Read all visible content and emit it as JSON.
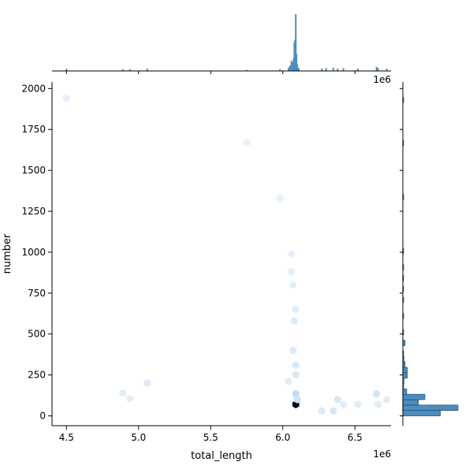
{
  "chart_data": {
    "type": "scatter",
    "plot_kind": "hexbin joint plot with marginal histograms",
    "xlabel": "total_length",
    "ylabel": "number",
    "x_offset_label": "1e6",
    "top_marginal_offset_label": "1e6",
    "xlim": [
      4400000.0,
      6750000.0
    ],
    "ylim": [
      -60,
      2040
    ],
    "x_ticks": [
      4500000.0,
      5000000.0,
      5500000.0,
      6000000.0,
      6500000.0
    ],
    "x_tick_labels": [
      "4.5",
      "5.0",
      "5.5",
      "6.0",
      "6.5"
    ],
    "y_ticks": [
      0,
      250,
      500,
      750,
      1000,
      1250,
      1500,
      1750,
      2000
    ],
    "y_tick_labels": [
      "0",
      "250",
      "500",
      "750",
      "1000",
      "1250",
      "1500",
      "1750",
      "2000"
    ],
    "grid": false,
    "colors": {
      "hex_dark": "#0a0a0a",
      "hex_mid": "#8fc2ec",
      "hex_light": "#d6e9f8",
      "hex_faint": "#eef5fc",
      "hist_fill": "#4c8dc0",
      "hist_edge": "#1a3a55"
    },
    "hexbins": [
      {
        "x": 6090000.0,
        "y": 70,
        "intensity": 1.0
      },
      {
        "x": 6090000.0,
        "y": 135,
        "intensity": 0.35
      },
      {
        "x": 6100000.0,
        "y": 100,
        "intensity": 0.2
      },
      {
        "x": 6090000.0,
        "y": 310,
        "intensity": 0.12
      },
      {
        "x": 6090000.0,
        "y": 250,
        "intensity": 0.1
      },
      {
        "x": 6070000.0,
        "y": 400,
        "intensity": 0.08
      },
      {
        "x": 6080000.0,
        "y": 580,
        "intensity": 0.08
      },
      {
        "x": 6090000.0,
        "y": 650,
        "intensity": 0.06
      },
      {
        "x": 6070000.0,
        "y": 800,
        "intensity": 0.06
      },
      {
        "x": 6060000.0,
        "y": 880,
        "intensity": 0.05
      },
      {
        "x": 6060000.0,
        "y": 990,
        "intensity": 0.04
      },
      {
        "x": 6040000.0,
        "y": 210,
        "intensity": 0.06
      },
      {
        "x": 5980000.0,
        "y": 1330,
        "intensity": 0.04
      },
      {
        "x": 5750000.0,
        "y": 1670,
        "intensity": 0.03
      },
      {
        "x": 4500000.0,
        "y": 1940,
        "intensity": 0.04
      },
      {
        "x": 5060000.0,
        "y": 200,
        "intensity": 0.08
      },
      {
        "x": 4890000.0,
        "y": 140,
        "intensity": 0.06
      },
      {
        "x": 4940000.0,
        "y": 105,
        "intensity": 0.05
      },
      {
        "x": 6270000.0,
        "y": 30,
        "intensity": 0.08
      },
      {
        "x": 6350000.0,
        "y": 30,
        "intensity": 0.12
      },
      {
        "x": 6380000.0,
        "y": 100,
        "intensity": 0.1
      },
      {
        "x": 6420000.0,
        "y": 70,
        "intensity": 0.06
      },
      {
        "x": 6520000.0,
        "y": 70,
        "intensity": 0.06
      },
      {
        "x": 6650000.0,
        "y": 135,
        "intensity": 0.18
      },
      {
        "x": 6660000.0,
        "y": 70,
        "intensity": 0.06
      },
      {
        "x": 6720000.0,
        "y": 100,
        "intensity": 0.06
      }
    ],
    "top_histogram": [
      {
        "x": 4500000.0,
        "h": 0.04
      },
      {
        "x": 4890000.0,
        "h": 0.03
      },
      {
        "x": 4940000.0,
        "h": 0.03
      },
      {
        "x": 5060000.0,
        "h": 0.04
      },
      {
        "x": 5750000.0,
        "h": 0.02
      },
      {
        "x": 5980000.0,
        "h": 0.03
      },
      {
        "x": 6040000.0,
        "h": 0.06
      },
      {
        "x": 6050000.0,
        "h": 0.1
      },
      {
        "x": 6060000.0,
        "h": 0.18
      },
      {
        "x": 6070000.0,
        "h": 0.15
      },
      {
        "x": 6075000.0,
        "h": 0.22
      },
      {
        "x": 6080000.0,
        "h": 0.5
      },
      {
        "x": 6085000.0,
        "h": 0.55
      },
      {
        "x": 6090000.0,
        "h": 1.0
      },
      {
        "x": 6095000.0,
        "h": 0.3
      },
      {
        "x": 6100000.0,
        "h": 0.12
      },
      {
        "x": 6110000.0,
        "h": 0.05
      },
      {
        "x": 6270000.0,
        "h": 0.04
      },
      {
        "x": 6300000.0,
        "h": 0.05
      },
      {
        "x": 6350000.0,
        "h": 0.06
      },
      {
        "x": 6380000.0,
        "h": 0.04
      },
      {
        "x": 6420000.0,
        "h": 0.05
      },
      {
        "x": 6520000.0,
        "h": 0.04
      },
      {
        "x": 6650000.0,
        "h": 0.07
      },
      {
        "x": 6660000.0,
        "h": 0.05
      },
      {
        "x": 6720000.0,
        "h": 0.04
      }
    ],
    "right_histogram_bin_width": 33,
    "right_histogram": [
      {
        "y": 0,
        "count": 68
      },
      {
        "y": 33,
        "count": 100
      },
      {
        "y": 66,
        "count": 28
      },
      {
        "y": 99,
        "count": 40
      },
      {
        "y": 132,
        "count": 7
      },
      {
        "y": 165,
        "count": 1
      },
      {
        "y": 198,
        "count": 2
      },
      {
        "y": 231,
        "count": 8
      },
      {
        "y": 264,
        "count": 8
      },
      {
        "y": 297,
        "count": 4
      },
      {
        "y": 330,
        "count": 2
      },
      {
        "y": 363,
        "count": 1
      },
      {
        "y": 429,
        "count": 4
      },
      {
        "y": 495,
        "count": 1
      },
      {
        "y": 594,
        "count": 1
      },
      {
        "y": 693,
        "count": 1
      },
      {
        "y": 759,
        "count": 1
      },
      {
        "y": 825,
        "count": 1
      },
      {
        "y": 891,
        "count": 1
      },
      {
        "y": 990,
        "count": 1
      },
      {
        "y": 1320,
        "count": 1
      },
      {
        "y": 1650,
        "count": 1
      },
      {
        "y": 1914,
        "count": 1
      }
    ]
  }
}
